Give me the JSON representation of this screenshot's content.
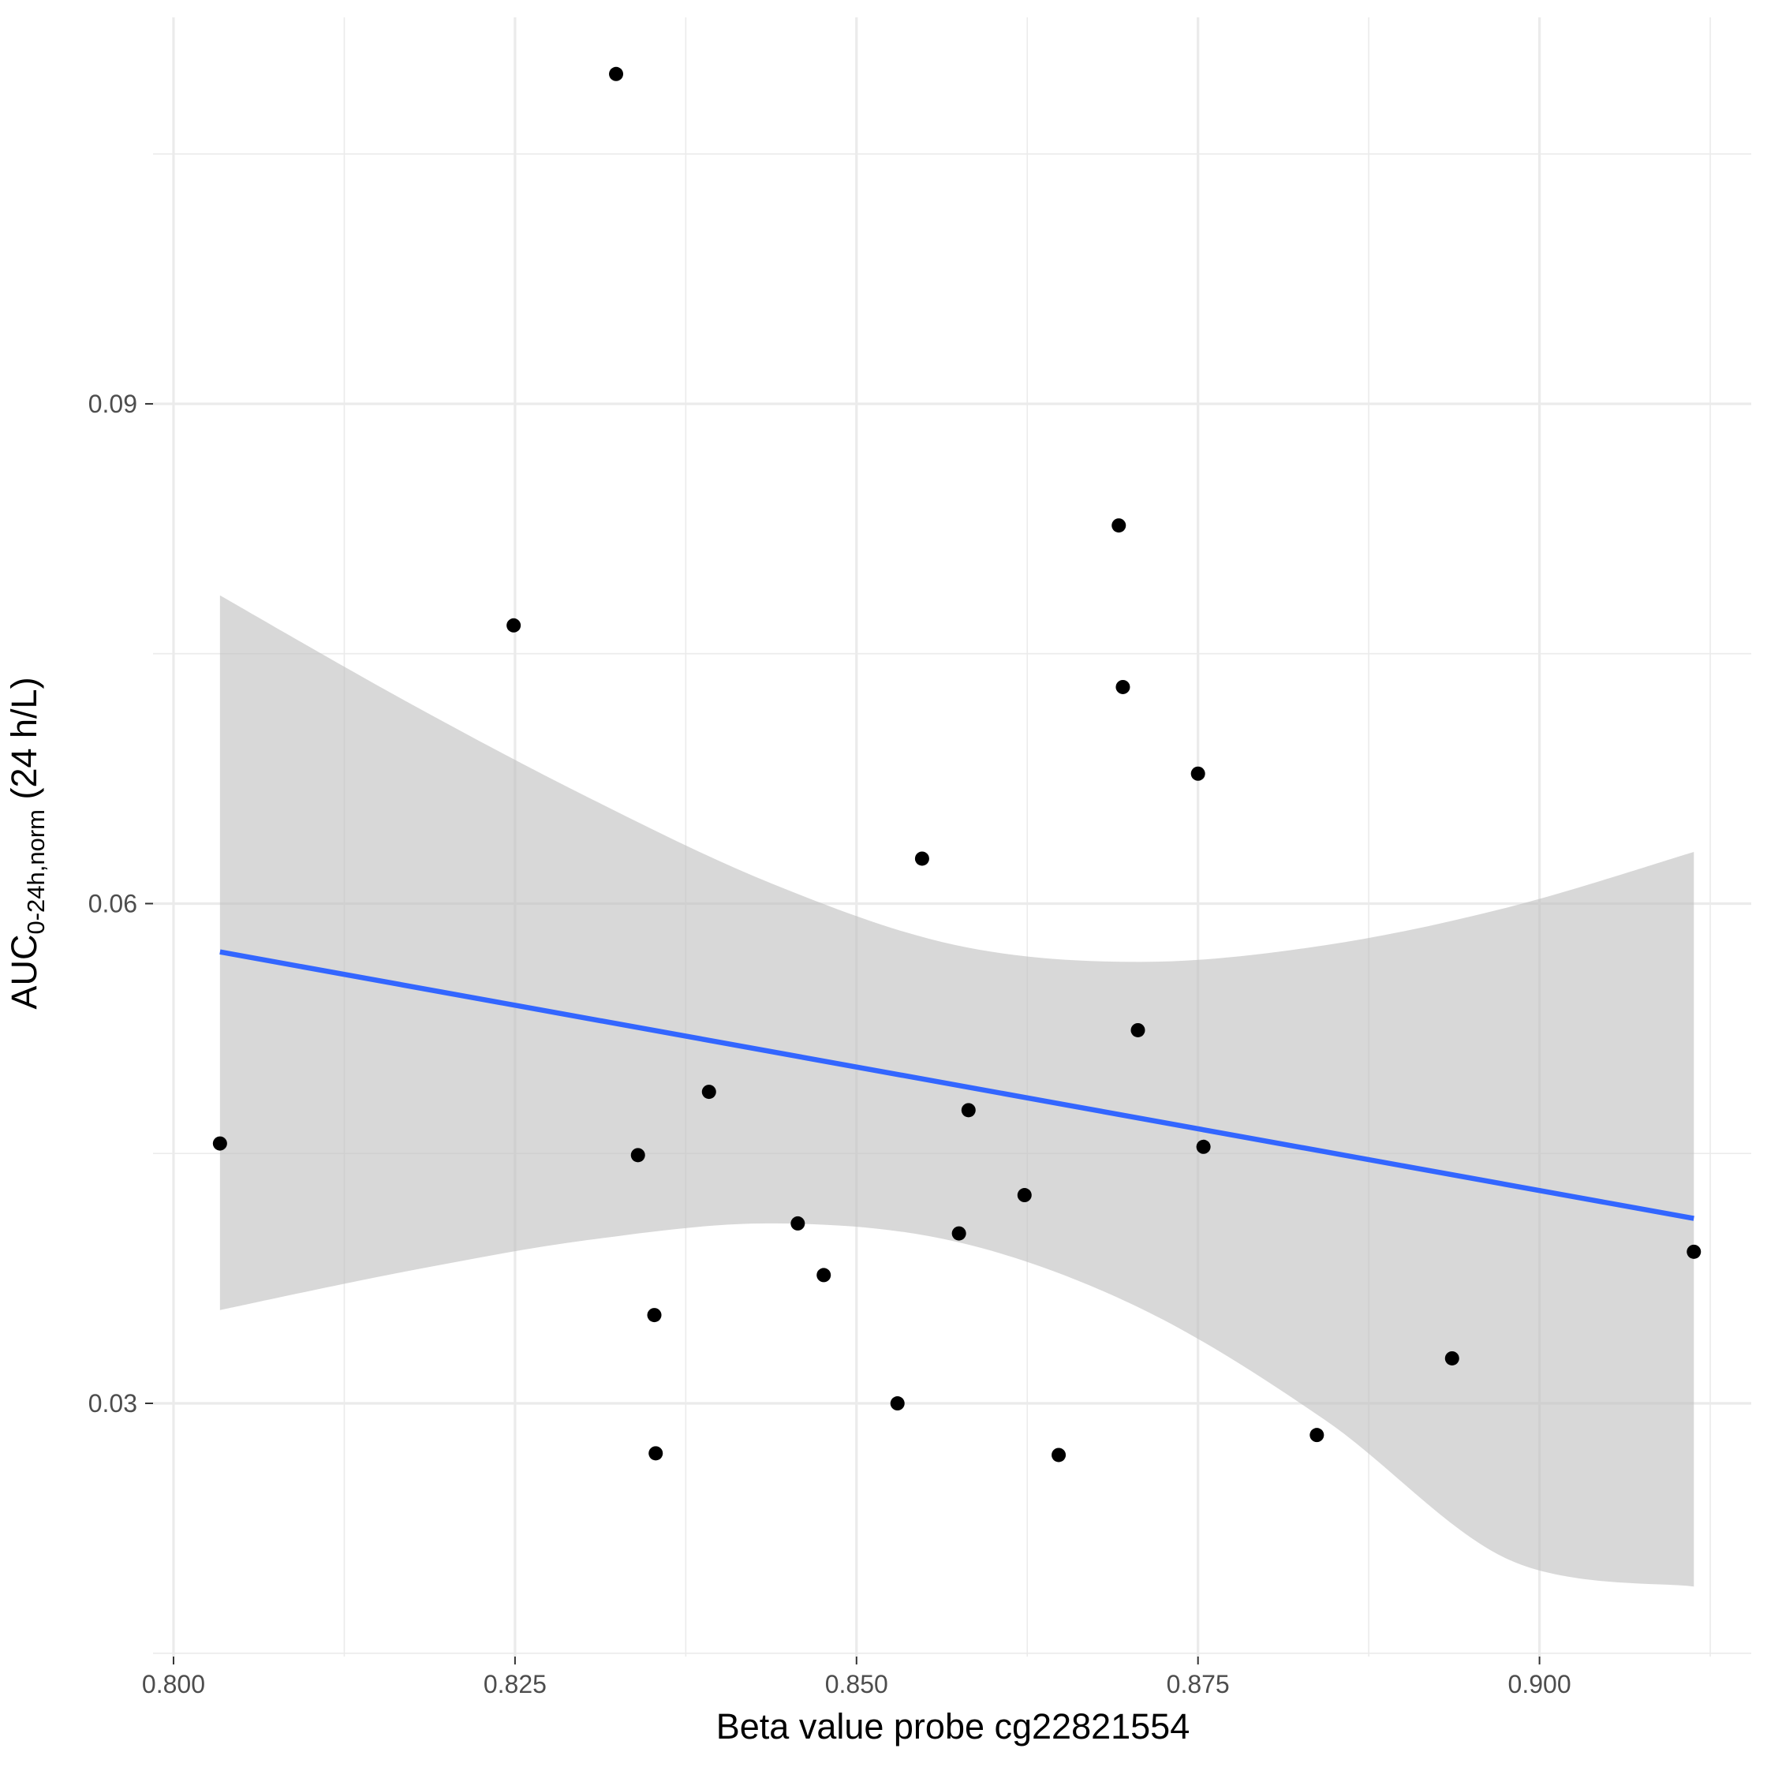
{
  "chart_data": {
    "type": "scatter",
    "xlabel": "Beta value probe cg22821554",
    "ylabel": {
      "main": "AUC",
      "subscript": "0-24h,norm",
      "suffix": " (24 h/L)"
    },
    "xlim": [
      0.7985,
      0.9155
    ],
    "ylim": [
      0.0148,
      0.1132
    ],
    "x_ticks": [
      {
        "value": 0.8,
        "label": "0.800"
      },
      {
        "value": 0.825,
        "label": "0.825"
      },
      {
        "value": 0.85,
        "label": "0.850"
      },
      {
        "value": 0.875,
        "label": "0.875"
      },
      {
        "value": 0.9,
        "label": "0.900"
      }
    ],
    "y_ticks": [
      {
        "value": 0.03,
        "label": "0.03"
      },
      {
        "value": 0.06,
        "label": "0.06"
      },
      {
        "value": 0.09,
        "label": "0.09"
      }
    ],
    "x_minor_grid": [
      0.8125,
      0.8375,
      0.8625,
      0.8875,
      0.9125
    ],
    "y_minor_grid": [
      0.015,
      0.045,
      0.075,
      0.105
    ],
    "grid": true,
    "points": [
      {
        "x": 0.8034,
        "y": 0.0456
      },
      {
        "x": 0.8249,
        "y": 0.0767
      },
      {
        "x": 0.8324,
        "y": 0.1098
      },
      {
        "x": 0.834,
        "y": 0.0449
      },
      {
        "x": 0.8352,
        "y": 0.0353
      },
      {
        "x": 0.8353,
        "y": 0.027
      },
      {
        "x": 0.8392,
        "y": 0.0487
      },
      {
        "x": 0.8457,
        "y": 0.0408
      },
      {
        "x": 0.8476,
        "y": 0.0377
      },
      {
        "x": 0.853,
        "y": 0.03
      },
      {
        "x": 0.8548,
        "y": 0.0627
      },
      {
        "x": 0.8575,
        "y": 0.0402
      },
      {
        "x": 0.8582,
        "y": 0.0476
      },
      {
        "x": 0.8623,
        "y": 0.0425
      },
      {
        "x": 0.8648,
        "y": 0.0269
      },
      {
        "x": 0.8692,
        "y": 0.0827
      },
      {
        "x": 0.8695,
        "y": 0.073
      },
      {
        "x": 0.8706,
        "y": 0.0524
      },
      {
        "x": 0.875,
        "y": 0.0678
      },
      {
        "x": 0.8754,
        "y": 0.0454
      },
      {
        "x": 0.8837,
        "y": 0.0281
      },
      {
        "x": 0.8936,
        "y": 0.0327
      },
      {
        "x": 0.9113,
        "y": 0.0391
      }
    ],
    "fit_line": {
      "x": [
        0.8034,
        0.9113
      ],
      "y": [
        0.0571,
        0.0411
      ],
      "color": "#3366ff"
    },
    "confidence_band": {
      "color": "#bebebe",
      "opacity": 0.6,
      "x": [
        0.8034,
        0.8169,
        0.8303,
        0.8438,
        0.8573,
        0.8708,
        0.8843,
        0.8978,
        0.9113
      ],
      "upper": [
        0.0785,
        0.0722,
        0.0664,
        0.0612,
        0.0575,
        0.0565,
        0.0575,
        0.0598,
        0.0631
      ],
      "lower": [
        0.0356,
        0.0379,
        0.0398,
        0.0408,
        0.0397,
        0.0357,
        0.029,
        0.0206,
        0.019
      ]
    },
    "point_color": "#000000"
  }
}
